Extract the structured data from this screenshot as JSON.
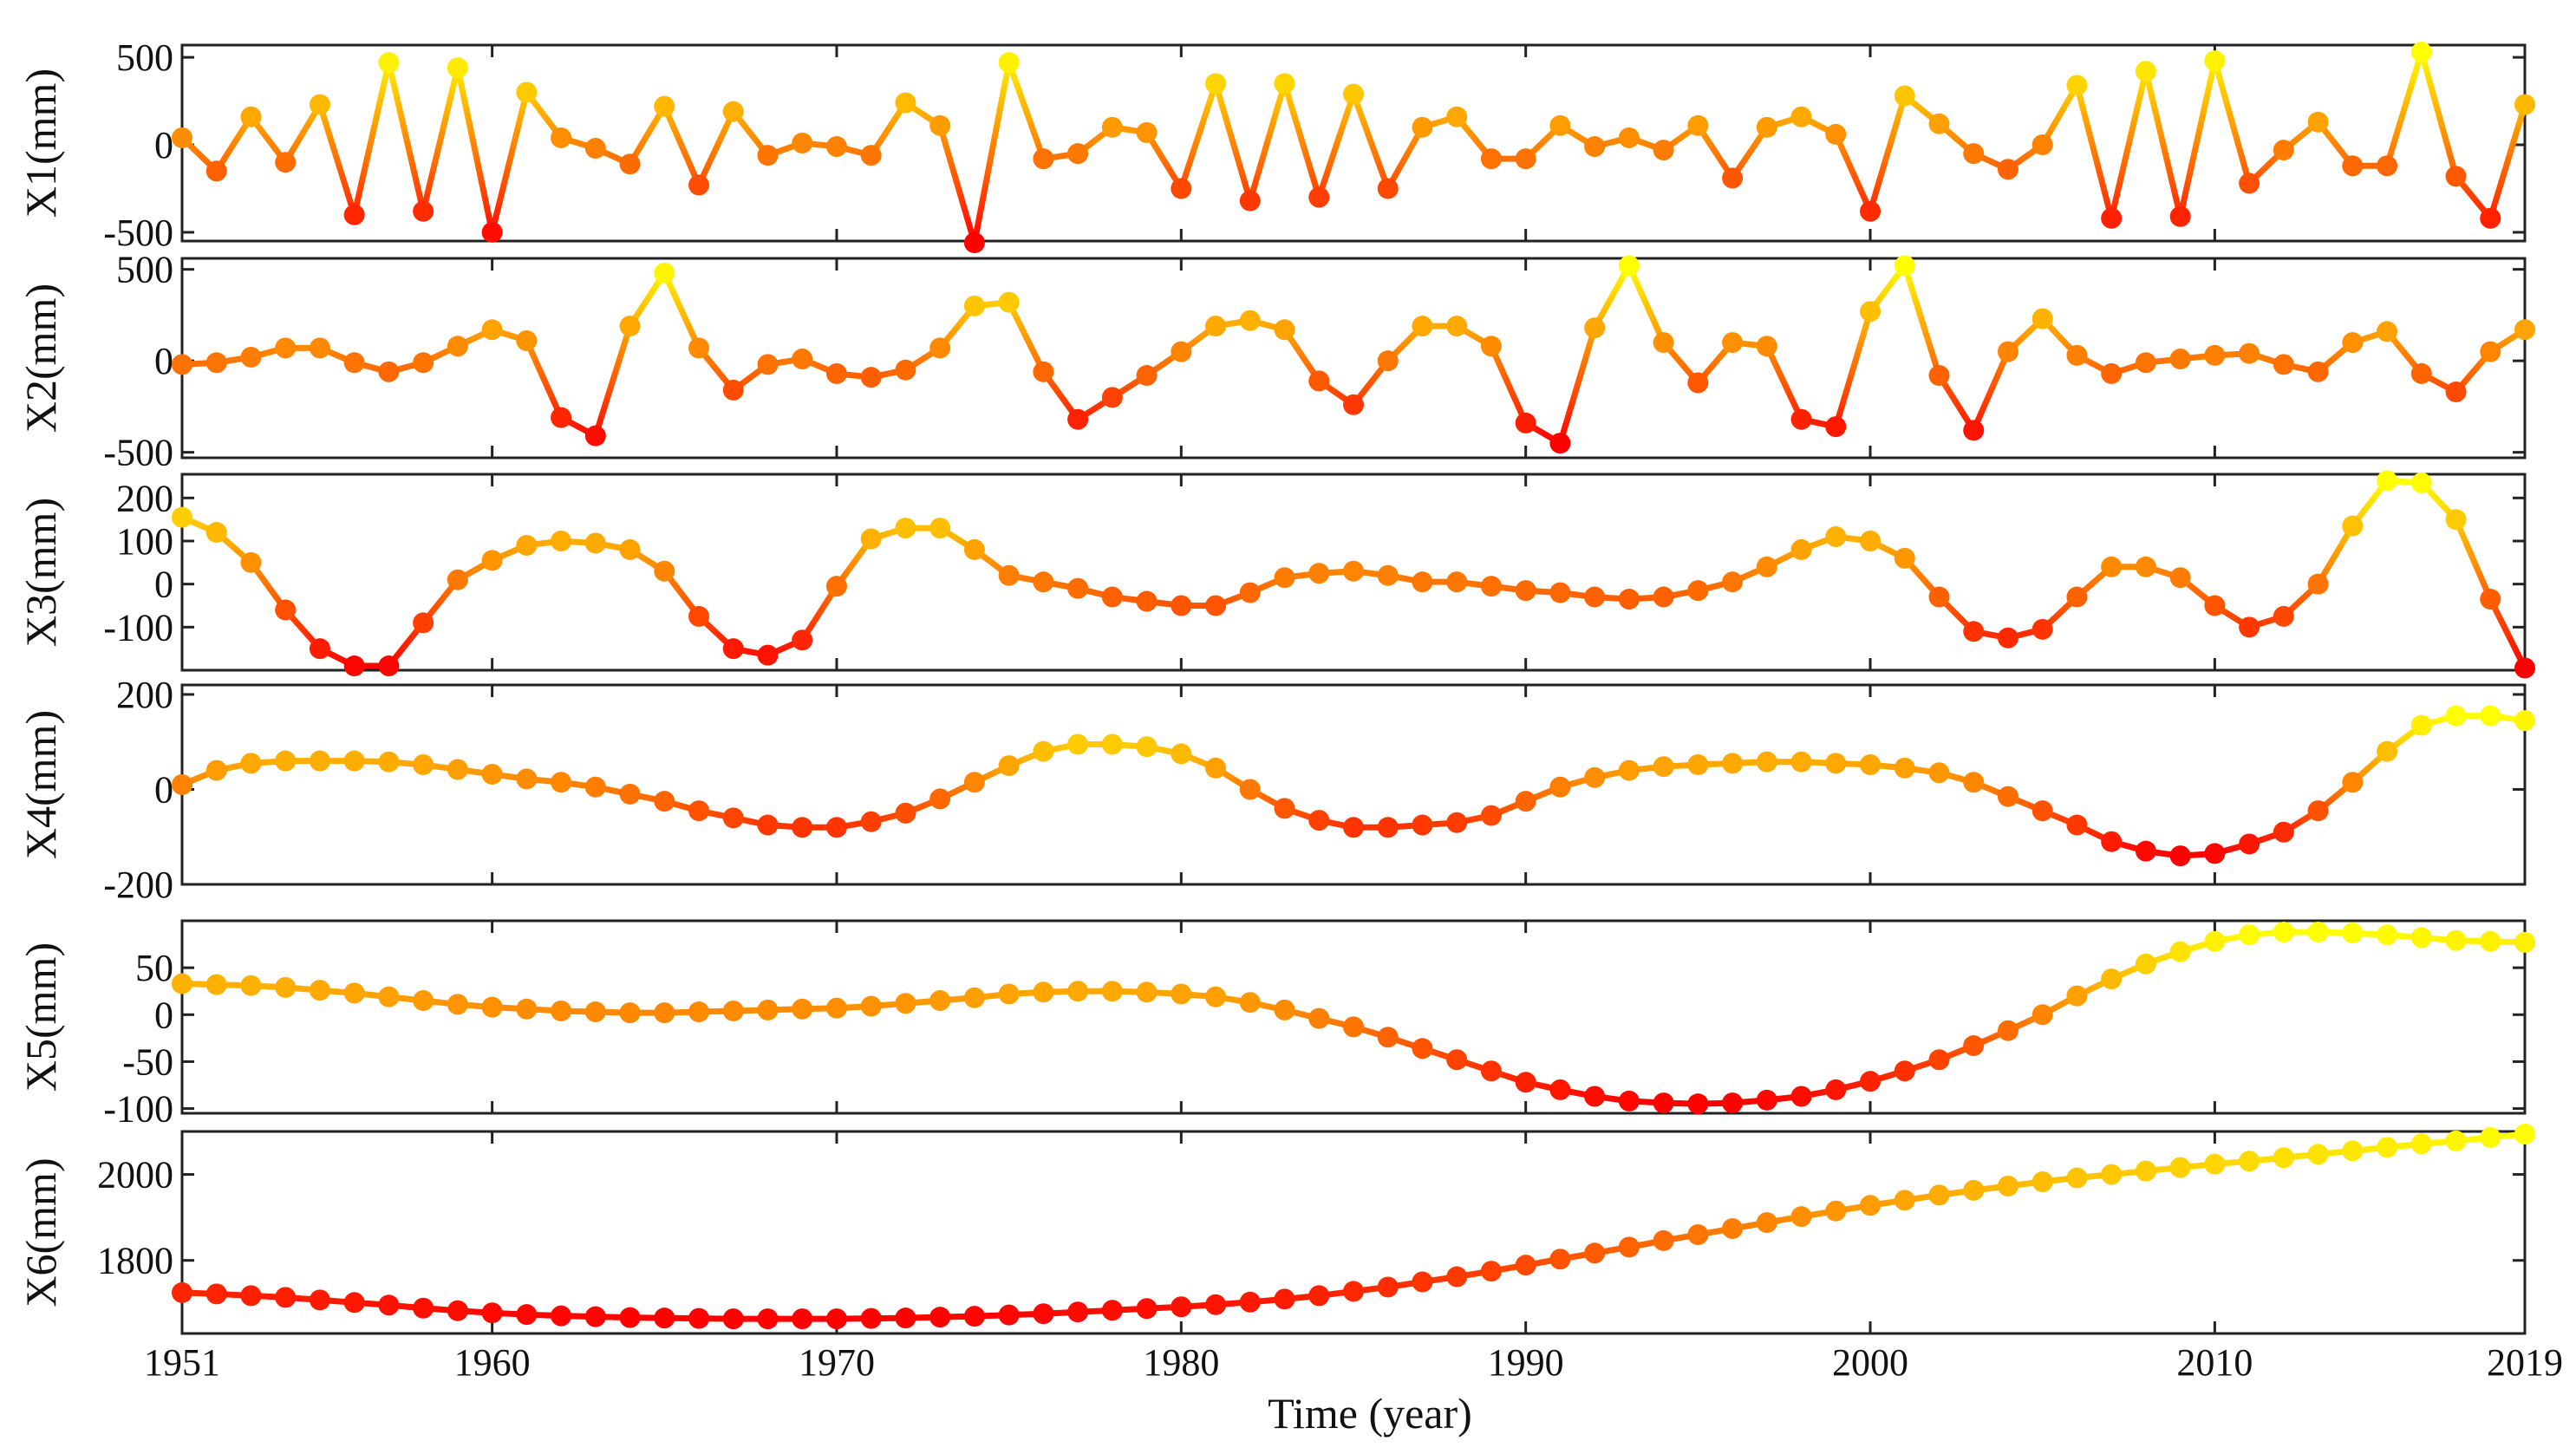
{
  "chart_data": [
    {
      "type": "line",
      "ylabel": "X1(mm)",
      "ylim": [
        -550,
        570
      ],
      "yticks": [
        500,
        0,
        -500
      ],
      "ytick_labels": [
        "500",
        "0",
        "-500"
      ],
      "x": [
        1951,
        1952,
        1953,
        1954,
        1955,
        1956,
        1957,
        1958,
        1959,
        1960,
        1961,
        1962,
        1963,
        1964,
        1965,
        1966,
        1967,
        1968,
        1969,
        1970,
        1971,
        1972,
        1973,
        1974,
        1975,
        1976,
        1977,
        1978,
        1979,
        1980,
        1981,
        1982,
        1983,
        1984,
        1985,
        1986,
        1987,
        1988,
        1989,
        1990,
        1991,
        1992,
        1993,
        1994,
        1995,
        1996,
        1997,
        1998,
        1999,
        2000,
        2001,
        2002,
        2003,
        2004,
        2005,
        2006,
        2007,
        2008,
        2009,
        2010,
        2011,
        2012,
        2013,
        2014,
        2015,
        2016,
        2017,
        2018,
        2019
      ],
      "values": [
        40,
        -150,
        160,
        -100,
        230,
        -400,
        470,
        -380,
        440,
        -500,
        300,
        40,
        -20,
        -110,
        220,
        -230,
        190,
        -60,
        10,
        -10,
        -60,
        240,
        110,
        -560,
        470,
        -80,
        -50,
        100,
        70,
        -250,
        350,
        -320,
        350,
        -300,
        290,
        -250,
        100,
        160,
        -80,
        -80,
        110,
        -10,
        40,
        -30,
        110,
        -190,
        100,
        160,
        60,
        -380,
        280,
        120,
        -50,
        -140,
        0,
        340,
        -420,
        420,
        -410,
        480,
        -220,
        -30,
        130,
        -120,
        -120,
        530,
        -180,
        -420,
        230
      ]
    },
    {
      "type": "line",
      "ylabel": "X2(mm)",
      "ylim": [
        -530,
        560
      ],
      "yticks": [
        500,
        0,
        -500
      ],
      "ytick_labels": [
        "500",
        "0",
        "-500"
      ],
      "x": [
        1951,
        1952,
        1953,
        1954,
        1955,
        1956,
        1957,
        1958,
        1959,
        1960,
        1961,
        1962,
        1963,
        1964,
        1965,
        1966,
        1967,
        1968,
        1969,
        1970,
        1971,
        1972,
        1973,
        1974,
        1975,
        1976,
        1977,
        1978,
        1979,
        1980,
        1981,
        1982,
        1983,
        1984,
        1985,
        1986,
        1987,
        1988,
        1989,
        1990,
        1991,
        1992,
        1993,
        1994,
        1995,
        1996,
        1997,
        1998,
        1999,
        2000,
        2001,
        2002,
        2003,
        2004,
        2005,
        2006,
        2007,
        2008,
        2009,
        2010,
        2011,
        2012,
        2013,
        2014,
        2015,
        2016,
        2017,
        2018,
        2019
      ],
      "values": [
        -20,
        -10,
        20,
        70,
        70,
        -10,
        -60,
        -10,
        80,
        170,
        110,
        -310,
        -410,
        190,
        480,
        70,
        -160,
        -20,
        10,
        -70,
        -90,
        -50,
        70,
        300,
        320,
        -60,
        -320,
        -200,
        -80,
        50,
        190,
        220,
        170,
        -110,
        -240,
        0,
        190,
        190,
        80,
        -340,
        -450,
        180,
        520,
        100,
        -120,
        100,
        80,
        -320,
        -360,
        270,
        520,
        -80,
        -380,
        50,
        230,
        30,
        -70,
        -10,
        10,
        30,
        40,
        -20,
        -60,
        100,
        160,
        -70,
        -170,
        50,
        170
      ]
    },
    {
      "type": "line",
      "ylabel": "X3(mm)",
      "ylim": [
        -200,
        255
      ],
      "yticks": [
        200,
        100,
        0,
        -100
      ],
      "ytick_labels": [
        "200",
        "100",
        "0",
        "-100"
      ],
      "x": [
        1951,
        1952,
        1953,
        1954,
        1955,
        1956,
        1957,
        1958,
        1959,
        1960,
        1961,
        1962,
        1963,
        1964,
        1965,
        1966,
        1967,
        1968,
        1969,
        1970,
        1971,
        1972,
        1973,
        1974,
        1975,
        1976,
        1977,
        1978,
        1979,
        1980,
        1981,
        1982,
        1983,
        1984,
        1985,
        1986,
        1987,
        1988,
        1989,
        1990,
        1991,
        1992,
        1993,
        1994,
        1995,
        1996,
        1997,
        1998,
        1999,
        2000,
        2001,
        2002,
        2003,
        2004,
        2005,
        2006,
        2007,
        2008,
        2009,
        2010,
        2011,
        2012,
        2013,
        2014,
        2015,
        2016,
        2017,
        2018,
        2019
      ],
      "values": [
        155,
        120,
        50,
        -60,
        -150,
        -190,
        -190,
        -90,
        10,
        55,
        90,
        100,
        95,
        80,
        30,
        -75,
        -150,
        -165,
        -130,
        -5,
        105,
        130,
        130,
        80,
        20,
        5,
        -10,
        -30,
        -40,
        -50,
        -50,
        -20,
        15,
        25,
        30,
        20,
        5,
        5,
        -5,
        -15,
        -20,
        -30,
        -35,
        -30,
        -15,
        5,
        40,
        80,
        110,
        100,
        60,
        -30,
        -110,
        -125,
        -105,
        -30,
        40,
        40,
        15,
        -50,
        -100,
        -75,
        0,
        135,
        240,
        235,
        150,
        -35,
        -195
      ]
    },
    {
      "type": "line",
      "ylabel": "X4(mm)",
      "ylim": [
        -200,
        220
      ],
      "yticks": [
        200,
        0,
        -200
      ],
      "ytick_labels": [
        "200",
        "0",
        "-200"
      ],
      "x": [
        1951,
        1952,
        1953,
        1954,
        1955,
        1956,
        1957,
        1958,
        1959,
        1960,
        1961,
        1962,
        1963,
        1964,
        1965,
        1966,
        1967,
        1968,
        1969,
        1970,
        1971,
        1972,
        1973,
        1974,
        1975,
        1976,
        1977,
        1978,
        1979,
        1980,
        1981,
        1982,
        1983,
        1984,
        1985,
        1986,
        1987,
        1988,
        1989,
        1990,
        1991,
        1992,
        1993,
        1994,
        1995,
        1996,
        1997,
        1998,
        1999,
        2000,
        2001,
        2002,
        2003,
        2004,
        2005,
        2006,
        2007,
        2008,
        2009,
        2010,
        2011,
        2012,
        2013,
        2014,
        2015,
        2016,
        2017,
        2018,
        2019
      ],
      "values": [
        10,
        40,
        55,
        60,
        60,
        60,
        58,
        52,
        42,
        32,
        22,
        15,
        5,
        -10,
        -25,
        -45,
        -60,
        -75,
        -80,
        -80,
        -68,
        -50,
        -20,
        15,
        50,
        80,
        95,
        95,
        90,
        75,
        45,
        0,
        -40,
        -65,
        -80,
        -80,
        -75,
        -70,
        -55,
        -25,
        5,
        25,
        40,
        48,
        52,
        55,
        58,
        58,
        55,
        52,
        45,
        35,
        15,
        -15,
        -45,
        -75,
        -110,
        -130,
        -140,
        -135,
        -115,
        -90,
        -45,
        15,
        80,
        135,
        155,
        155,
        145
      ]
    },
    {
      "type": "line",
      "ylabel": "X5(mm)",
      "ylim": [
        -105,
        100
      ],
      "yticks": [
        50,
        0,
        -50,
        -100
      ],
      "ytick_labels": [
        "50",
        "0",
        "-50",
        "-100"
      ],
      "x": [
        1951,
        1952,
        1953,
        1954,
        1955,
        1956,
        1957,
        1958,
        1959,
        1960,
        1961,
        1962,
        1963,
        1964,
        1965,
        1966,
        1967,
        1968,
        1969,
        1970,
        1971,
        1972,
        1973,
        1974,
        1975,
        1976,
        1977,
        1978,
        1979,
        1980,
        1981,
        1982,
        1983,
        1984,
        1985,
        1986,
        1987,
        1988,
        1989,
        1990,
        1991,
        1992,
        1993,
        1994,
        1995,
        1996,
        1997,
        1998,
        1999,
        2000,
        2001,
        2002,
        2003,
        2004,
        2005,
        2006,
        2007,
        2008,
        2009,
        2010,
        2011,
        2012,
        2013,
        2014,
        2015,
        2016,
        2017,
        2018,
        2019
      ],
      "values": [
        33,
        32,
        31,
        29,
        26,
        23,
        19,
        15,
        11,
        8,
        6,
        4,
        3,
        2,
        2,
        3,
        4,
        5,
        6,
        7,
        9,
        12,
        15,
        18,
        22,
        24,
        25,
        25,
        24,
        22,
        19,
        13,
        5,
        -4,
        -13,
        -24,
        -36,
        -48,
        -60,
        -72,
        -80,
        -87,
        -92,
        -94,
        -95,
        -94,
        -91,
        -87,
        -80,
        -71,
        -60,
        -48,
        -33,
        -17,
        0,
        20,
        38,
        54,
        67,
        78,
        85,
        88,
        88,
        87,
        85,
        82,
        79,
        78,
        77
      ]
    },
    {
      "type": "line",
      "ylabel": "X6(mm)",
      "ylim": [
        1630,
        2100
      ],
      "yticks": [
        2000,
        1800
      ],
      "ytick_labels": [
        "2000",
        "1800"
      ],
      "x": [
        1951,
        1952,
        1953,
        1954,
        1955,
        1956,
        1957,
        1958,
        1959,
        1960,
        1961,
        1962,
        1963,
        1964,
        1965,
        1966,
        1967,
        1968,
        1969,
        1970,
        1971,
        1972,
        1973,
        1974,
        1975,
        1976,
        1977,
        1978,
        1979,
        1980,
        1981,
        1982,
        1983,
        1984,
        1985,
        1986,
        1987,
        1988,
        1989,
        1990,
        1991,
        1992,
        1993,
        1994,
        1995,
        1996,
        1997,
        1998,
        1999,
        2000,
        2001,
        2002,
        2003,
        2004,
        2005,
        2006,
        2007,
        2008,
        2009,
        2010,
        2011,
        2012,
        2013,
        2014,
        2015,
        2016,
        2017,
        2018,
        2019
      ],
      "values": [
        1725,
        1722,
        1718,
        1714,
        1708,
        1702,
        1696,
        1689,
        1683,
        1678,
        1674,
        1671,
        1669,
        1667,
        1666,
        1665,
        1664,
        1664,
        1664,
        1664,
        1665,
        1666,
        1668,
        1670,
        1673,
        1676,
        1680,
        1684,
        1688,
        1692,
        1697,
        1703,
        1710,
        1718,
        1728,
        1738,
        1750,
        1762,
        1775,
        1789,
        1803,
        1817,
        1831,
        1846,
        1860,
        1874,
        1888,
        1902,
        1915,
        1928,
        1940,
        1952,
        1963,
        1973,
        1983,
        1992,
        2000,
        2008,
        2016,
        2024,
        2031,
        2039,
        2047,
        2055,
        2063,
        2071,
        2078,
        2086,
        2094
      ]
    }
  ],
  "x_axis": {
    "label": "Time (year)",
    "xlim": [
      1951,
      2019
    ],
    "tick_values": [
      1951,
      1960,
      1970,
      1980,
      1990,
      2000,
      2010,
      2019
    ],
    "tick_labels": [
      "1951",
      "1960",
      "1970",
      "1980",
      "1990",
      "2000",
      "2010",
      "2019"
    ]
  },
  "colors": {
    "low": "#ff0000",
    "mid": "#ff8000",
    "high": "#ffff00",
    "axis": "#222222"
  }
}
